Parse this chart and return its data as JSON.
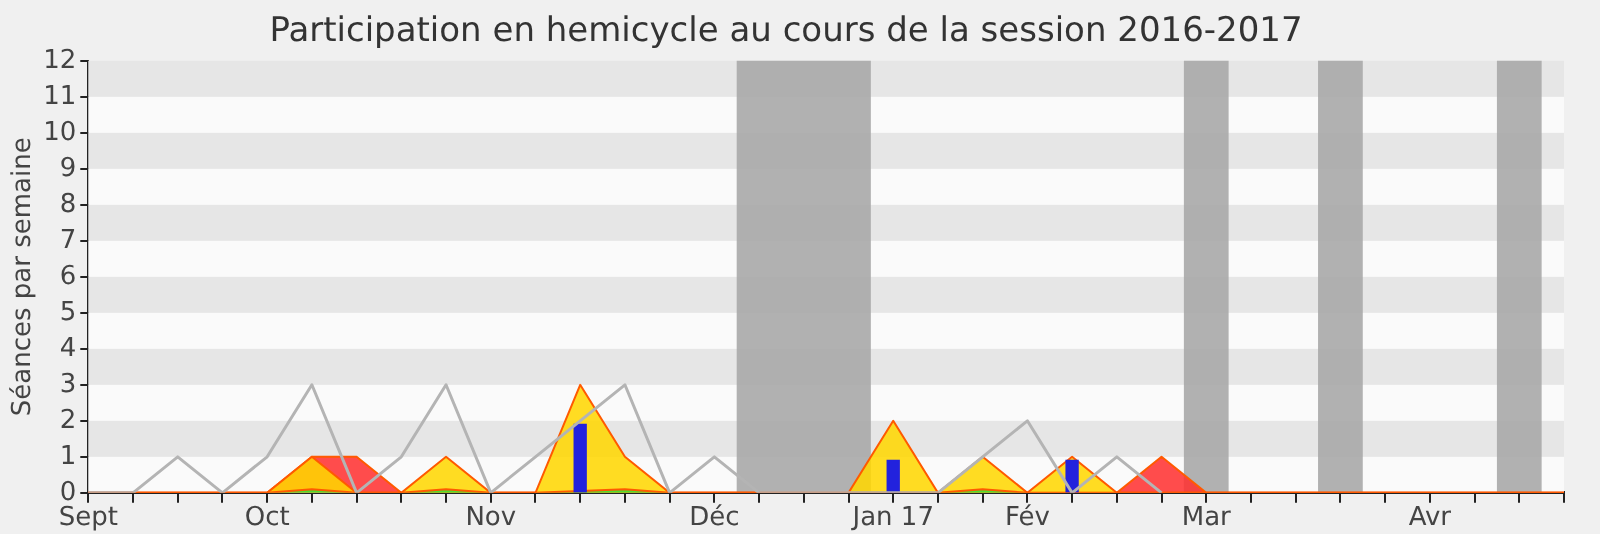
{
  "chart_data": {
    "type": "area",
    "title": "Participation en hemicycle au cours de la session 2016-2017",
    "ylabel": "Séances par semaine",
    "categories": [
      "Sept",
      null,
      null,
      null,
      "Oct",
      null,
      null,
      null,
      null,
      "Nov",
      null,
      null,
      null,
      null,
      "Déc",
      null,
      null,
      null,
      "Jan 17",
      null,
      null,
      "Fév",
      null,
      null,
      null,
      "Mar",
      null,
      null,
      null,
      null,
      "Avr",
      null,
      null,
      null
    ],
    "series": [
      {
        "type": "line",
        "color": "#b4b4b4",
        "values": [
          0,
          0,
          1,
          0,
          1,
          3,
          0,
          1,
          3,
          0,
          1,
          2,
          3,
          0,
          1,
          0,
          0,
          0,
          0,
          0,
          1,
          2,
          0,
          1,
          0,
          null,
          null,
          null,
          null,
          null,
          null,
          null,
          null,
          null
        ]
      },
      {
        "color": "#ff3030",
        "values": [
          0,
          0,
          0,
          0,
          0,
          1,
          1,
          0,
          0,
          0,
          0,
          0,
          0,
          0,
          0,
          0,
          0,
          0,
          0,
          0,
          0,
          0,
          0,
          0,
          1,
          0,
          0,
          0,
          0,
          0,
          0,
          0,
          0,
          0
        ]
      },
      {
        "color": "#ffd700",
        "values": [
          0,
          0,
          0,
          0,
          0,
          1,
          0,
          0,
          1,
          0,
          0,
          3,
          1,
          0,
          0,
          0,
          0,
          0,
          2,
          0,
          1,
          0,
          1,
          0,
          0,
          0,
          0,
          0,
          0,
          0,
          0,
          0,
          0,
          0
        ]
      },
      {
        "color": "#33dd33",
        "values": [
          0,
          0,
          0,
          0,
          0,
          0.1,
          0,
          0,
          0.1,
          0,
          0,
          null,
          0.1,
          0,
          0,
          0,
          0,
          0,
          null,
          0,
          0.1,
          0,
          null,
          0,
          0,
          0,
          0,
          0,
          0,
          0,
          0,
          0,
          0,
          0
        ]
      },
      {
        "type": "bar",
        "color": "#2222dd",
        "values": [
          null,
          null,
          null,
          null,
          null,
          null,
          null,
          null,
          null,
          null,
          null,
          1.9,
          null,
          null,
          null,
          null,
          null,
          null,
          0.9,
          null,
          null,
          null,
          0.9,
          null,
          null,
          null,
          null,
          null,
          null,
          null,
          null,
          null,
          null,
          null
        ]
      }
    ],
    "ylim": [
      0,
      12
    ],
    "yticks": [
      0,
      1,
      2,
      3,
      4,
      5,
      6,
      7,
      8,
      9,
      10,
      11,
      12
    ],
    "legend": false,
    "marker": "none"
  }
}
